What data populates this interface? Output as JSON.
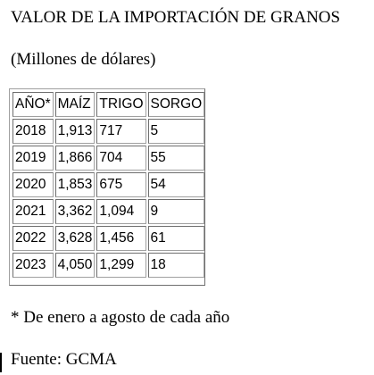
{
  "title": "VALOR DE LA IMPORTACIÓN DE GRANOS",
  "subtitle": "(Millones de dólares)",
  "table": {
    "headers": [
      "AÑO*",
      "MAÍZ",
      "TRIGO",
      "SORGO"
    ],
    "rows": [
      [
        "2018",
        "1,913",
        "717",
        "5"
      ],
      [
        "2019",
        "1,866",
        "704",
        "55"
      ],
      [
        "2020",
        "1,853",
        "675",
        "54"
      ],
      [
        "2021",
        "3,362",
        "1,094",
        "9"
      ],
      [
        "2022",
        "3,628",
        "1,456",
        "61"
      ],
      [
        "2023",
        "4,050",
        "1,299",
        "18"
      ]
    ]
  },
  "footnote": "* De enero a agosto de cada año",
  "source": "Fuente: GCMA"
}
